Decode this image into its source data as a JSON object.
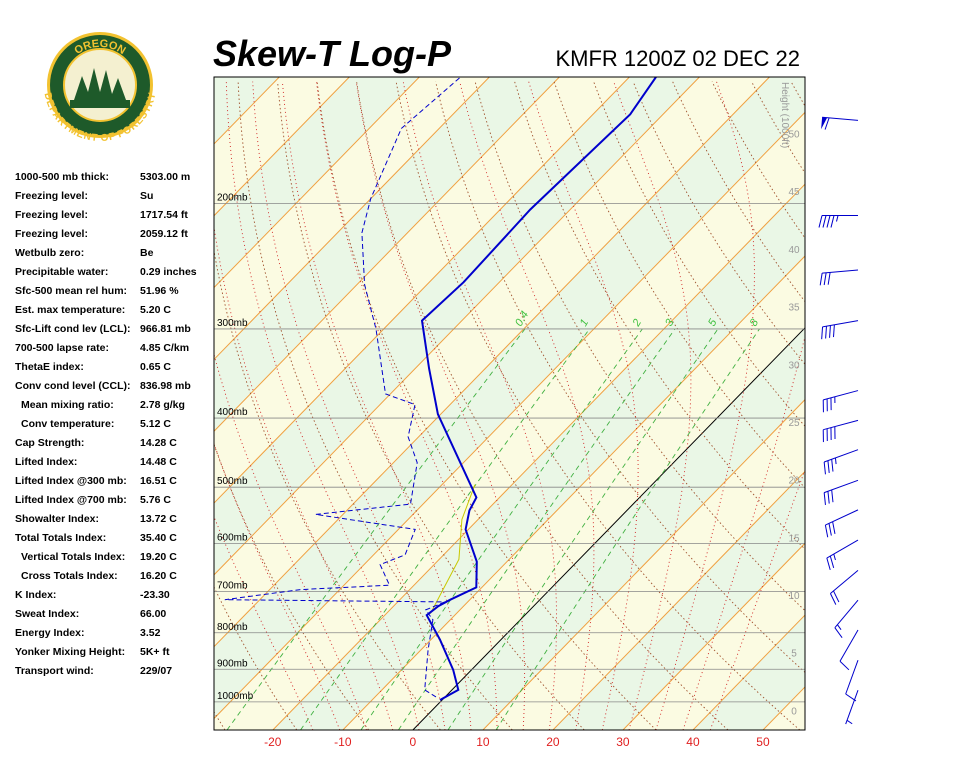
{
  "logo": {
    "top": "OREGON",
    "bottom": "DEPARTMENT OF FORESTRY"
  },
  "indices": [
    [
      "1000-500 mb thick:",
      "5303.00 m"
    ],
    [
      "Freezing level:",
      "Su"
    ],
    [
      "Freezing level:",
      "1717.54 ft"
    ],
    [
      "Freezing level:",
      "2059.12 ft"
    ],
    [
      "Wetbulb zero:",
      "Be"
    ],
    [
      "Precipitable water:",
      "0.29 inches"
    ],
    [
      "Sfc-500 mean rel hum:",
      "51.96 %"
    ],
    [
      "Est. max temperature:",
      "5.20 C"
    ],
    [
      "Sfc-Lift cond lev (LCL):",
      "966.81 mb"
    ],
    [
      "700-500 lapse rate:",
      "4.85 C/km"
    ],
    [
      "ThetaE index:",
      "0.65 C"
    ],
    [
      "Conv cond level (CCL):",
      "836.98 mb"
    ],
    [
      "Mean mixing ratio:",
      "2.78 g/kg"
    ],
    [
      "Conv temperature:",
      "5.12 C"
    ],
    [
      "Cap Strength:",
      "14.28 C"
    ],
    [
      "Lifted Index:",
      "14.48 C"
    ],
    [
      "Lifted Index @300 mb:",
      "16.51 C"
    ],
    [
      "Lifted Index @700 mb:",
      "5.76 C"
    ],
    [
      "Showalter Index:",
      "13.72 C"
    ],
    [
      "Total Totals Index:",
      "35.40 C"
    ],
    [
      "Vertical Totals Index:",
      "19.20 C"
    ],
    [
      "Cross Totals Index:",
      "16.20 C"
    ],
    [
      "K Index:",
      "-23.30"
    ],
    [
      "Sweat Index:",
      "66.00"
    ],
    [
      "Energy Index:",
      "3.52"
    ],
    [
      "Yonker Mixing Height:",
      "5K+ ft"
    ],
    [
      "Transport wind:",
      "229/07"
    ]
  ],
  "chart_data": {
    "type": "skewt",
    "title": "Skew-T Log-P",
    "subtitle": "KMFR 1200Z 02 DEC 22",
    "xlim": [
      -28.4,
      56
    ],
    "xticks": [
      -20,
      -10,
      0,
      10,
      20,
      30,
      40,
      50
    ],
    "plim": [
      1095,
      133
    ],
    "pticks": [
      {
        "value": 1000,
        "label": "1000mb"
      },
      {
        "value": 900,
        "label": "900mb"
      },
      {
        "value": 800,
        "label": "800mb"
      },
      {
        "value": 700,
        "label": "700mb"
      },
      {
        "value": 600,
        "label": "600mb"
      },
      {
        "value": 500,
        "label": "500mb"
      },
      {
        "value": 400,
        "label": "400mb"
      },
      {
        "value": 300,
        "label": "300mb"
      },
      {
        "value": 200,
        "label": "200mb"
      }
    ],
    "height_label": "Height (1000ft)",
    "hlim": [
      -1.7,
      54.9
    ],
    "hticks": [
      0,
      5,
      10,
      15,
      20,
      25,
      30,
      35,
      40,
      45,
      50
    ],
    "mixing_ratios": [
      0.4,
      1,
      2,
      3,
      5,
      8
    ],
    "temperature": {
      "color": "#0000cc",
      "pressure": [
        994,
        962,
        902,
        818,
        756,
        734,
        719,
        691,
        636,
        573,
        539,
        517,
        395,
        341,
        292,
        258,
        204,
        150,
        133
      ],
      "values": [
        -0.3,
        0.9,
        -2.6,
        -8.7,
        -14.0,
        -13.6,
        -12.8,
        -10.8,
        -14.3,
        -20.4,
        -22.5,
        -23.3,
        -40.4,
        -48.0,
        -55.7,
        -55.1,
        -55.7,
        -54.7,
        -56.2
      ]
    },
    "dewpoint": {
      "color": "#0000cc",
      "pressure": [
        984,
        962,
        845,
        767,
        743,
        724,
        719,
        696,
        686,
        642,
        622,
        573,
        546,
        528,
        462,
        425,
        383,
        370,
        300,
        260,
        220,
        197,
        157,
        133
      ],
      "values": [
        -1.3,
        -3.9,
        -9.0,
        -12.5,
        -14.9,
        -13.3,
        -45.0,
        -35.6,
        -23.5,
        -27.7,
        -25.5,
        -27.6,
        -43.9,
        -31.8,
        -36.6,
        -41.5,
        -45.0,
        -50.7,
        -61.1,
        -68.9,
        -76.5,
        -80.0,
        -85.4,
        -84.1
      ]
    },
    "parcel": {
      "color": "#c8c800",
      "pressure": [
        752,
        631,
        555,
        496
      ],
      "values": [
        -13.7,
        -17.2,
        -22.3,
        -25.3
      ]
    },
    "wind": {
      "color": "#0000cc",
      "pressure": [
        153,
        208,
        248,
        292,
        366,
        403,
        443,
        489,
        538,
        593,
        654,
        720,
        793,
        874,
        963
      ],
      "direction": [
        275,
        270,
        265,
        260,
        255,
        255,
        250,
        250,
        245,
        240,
        230,
        220,
        210,
        200,
        200
      ],
      "speed": [
        60,
        45,
        30,
        40,
        35,
        40,
        35,
        30,
        30,
        25,
        20,
        15,
        10,
        10,
        5
      ]
    }
  }
}
